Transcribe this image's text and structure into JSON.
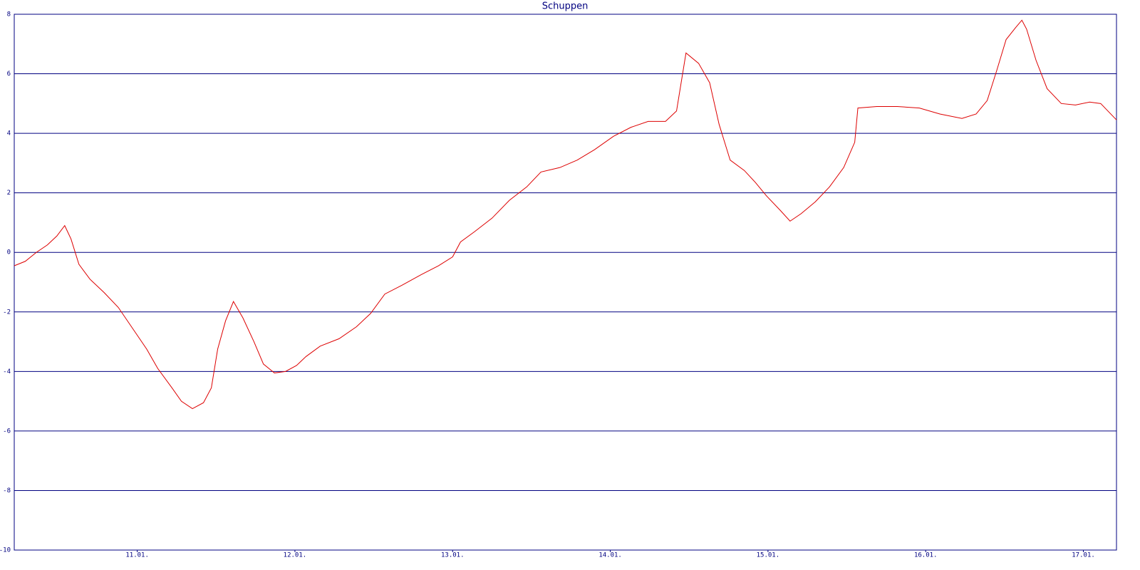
{
  "chart_data": {
    "type": "line",
    "title": "Schuppen",
    "x": [
      10.22,
      10.29,
      10.36,
      10.43,
      10.49,
      10.54,
      10.58,
      10.63,
      10.7,
      10.79,
      10.88,
      10.97,
      11.06,
      11.13,
      11.22,
      11.28,
      11.35,
      11.42,
      11.47,
      11.51,
      11.56,
      11.61,
      11.67,
      11.74,
      11.8,
      11.87,
      11.94,
      12.01,
      12.07,
      12.16,
      12.28,
      12.39,
      12.48,
      12.57,
      12.68,
      12.8,
      12.91,
      13.0,
      13.05,
      13.14,
      13.25,
      13.36,
      13.47,
      13.56,
      13.68,
      13.79,
      13.9,
      14.02,
      14.13,
      14.24,
      14.35,
      14.42,
      14.48,
      14.56,
      14.63,
      14.69,
      14.76,
      14.85,
      14.92,
      14.99,
      15.08,
      15.14,
      15.21,
      15.3,
      15.39,
      15.48,
      15.55,
      15.57,
      15.69,
      15.82,
      15.96,
      16.09,
      16.23,
      16.32,
      16.39,
      16.45,
      16.51,
      16.57,
      16.61,
      16.64,
      16.7,
      16.77,
      16.86,
      16.95,
      17.04,
      17.11,
      17.21
    ],
    "series": [
      {
        "color": "#dd0000",
        "values": [
          -0.45,
          -0.3,
          0,
          0.25,
          0.55,
          0.9,
          0.45,
          -0.4,
          -0.9,
          -1.35,
          -1.85,
          -2.55,
          -3.25,
          -3.9,
          -4.55,
          -5.0,
          -5.25,
          -5.05,
          -4.55,
          -3.25,
          -2.3,
          -1.65,
          -2.2,
          -3.0,
          -3.75,
          -4.05,
          -4.0,
          -3.8,
          -3.5,
          -3.15,
          -2.9,
          -2.5,
          -2.05,
          -1.4,
          -1.1,
          -0.75,
          -0.45,
          -0.15,
          0.35,
          0.7,
          1.15,
          1.75,
          2.2,
          2.7,
          2.85,
          3.1,
          3.45,
          3.9,
          4.2,
          4.4,
          4.4,
          4.75,
          6.7,
          6.35,
          5.7,
          4.3,
          3.1,
          2.75,
          2.35,
          1.9,
          1.4,
          1.05,
          1.3,
          1.7,
          2.2,
          2.85,
          3.7,
          4.85,
          4.9,
          4.9,
          4.85,
          4.65,
          4.5,
          4.65,
          5.1,
          6.1,
          7.15,
          7.55,
          7.8,
          7.5,
          6.45,
          5.5,
          5.0,
          4.95,
          5.05,
          5.0,
          4.45
        ]
      }
    ],
    "xlim": [
      10.22,
      17.21
    ],
    "xticks": [
      {
        "value": 11,
        "label": "11.01."
      },
      {
        "value": 12,
        "label": "12.01."
      },
      {
        "value": 13,
        "label": "13.01."
      },
      {
        "value": 14,
        "label": "14.01."
      },
      {
        "value": 15,
        "label": "15.01."
      },
      {
        "value": 16,
        "label": "16.01."
      },
      {
        "value": 17,
        "label": "17.01."
      }
    ],
    "ylim": [
      -10,
      8
    ],
    "yticks": [
      -10,
      -8,
      -6,
      -4,
      -2,
      0,
      2,
      4,
      6,
      8
    ],
    "grid": true
  }
}
